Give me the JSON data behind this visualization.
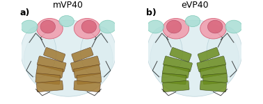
{
  "title_left": "mVP40",
  "title_right": "eVP40",
  "label_left": "a)",
  "label_right": "b)",
  "bg_color": "#ffffff",
  "figsize": [
    3.78,
    1.5
  ],
  "dpi": 100,
  "panel_split": 0.5,
  "label_fontsize": 9,
  "title_fontsize": 9,
  "left_panel_color": "#c8dce0",
  "right_panel_color": "#c8dce0"
}
